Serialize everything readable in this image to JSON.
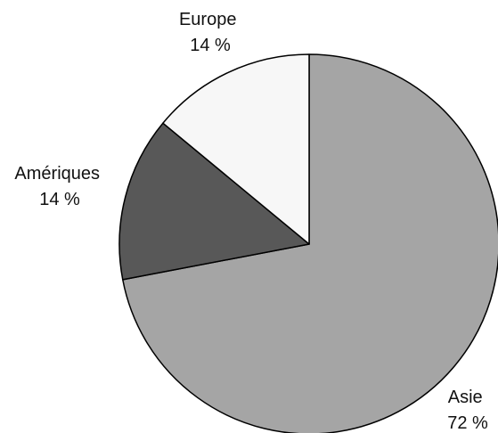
{
  "chart_data": {
    "type": "pie",
    "title": "",
    "slices": [
      {
        "label": "Asie",
        "value": 72,
        "value_label": "72 %",
        "color": "#a5a5a5"
      },
      {
        "label": "Amériques",
        "value": 14,
        "value_label": "14 %",
        "color": "#585858"
      },
      {
        "label": "Europe",
        "value": 14,
        "value_label": "14 %",
        "color": "#f7f7f7"
      }
    ],
    "start_direction": "top",
    "direction": "clockwise",
    "legend": "none",
    "labels": "outside",
    "outline_color": "#000000"
  }
}
